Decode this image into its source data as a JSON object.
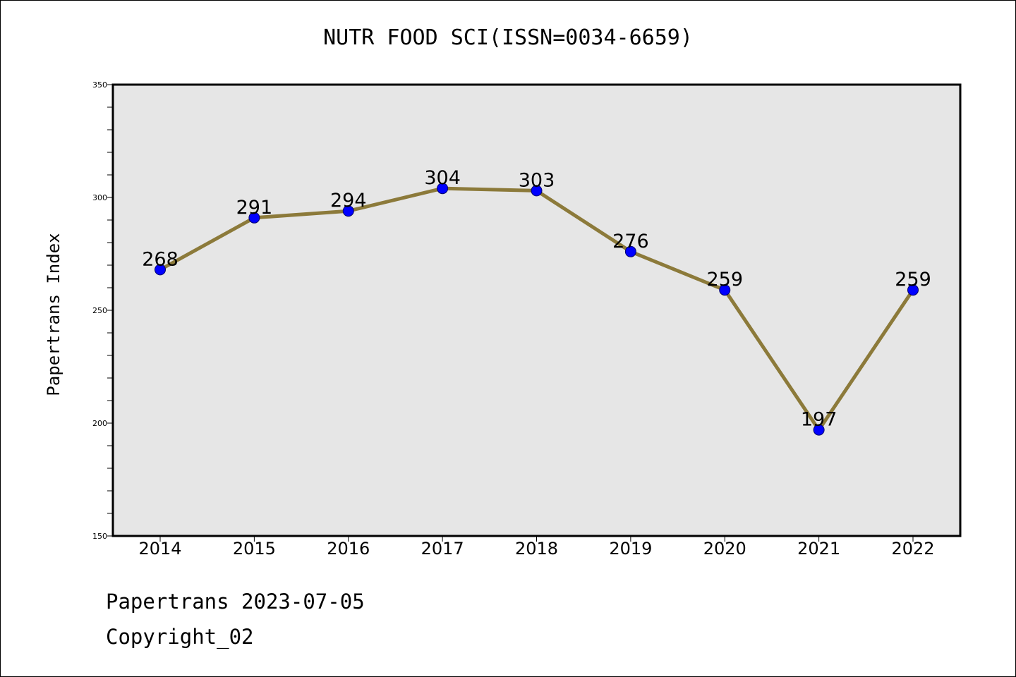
{
  "title": "NUTR FOOD SCI(ISSN=0034-6659)",
  "footer": {
    "line1": "Papertrans 2023-07-05",
    "line2": "Copyright_02"
  },
  "chart_data": {
    "type": "line",
    "title": "NUTR FOOD SCI(ISSN=0034-6659)",
    "xlabel": "",
    "ylabel": "Papertrans Index",
    "x": [
      "2014",
      "2015",
      "2016",
      "2017",
      "2018",
      "2019",
      "2020",
      "2021",
      "2022"
    ],
    "series": [
      {
        "values": [
          268,
          291,
          294,
          304,
          303,
          276,
          259,
          197,
          259
        ]
      }
    ],
    "ylim": [
      150,
      350
    ],
    "yticks": [
      "150",
      "200",
      "250",
      "300",
      "350"
    ],
    "grid": false,
    "colors": {
      "line": "#8c7a3a",
      "marker": "#0000ff",
      "plot_bg": "#e6e6e6"
    }
  }
}
